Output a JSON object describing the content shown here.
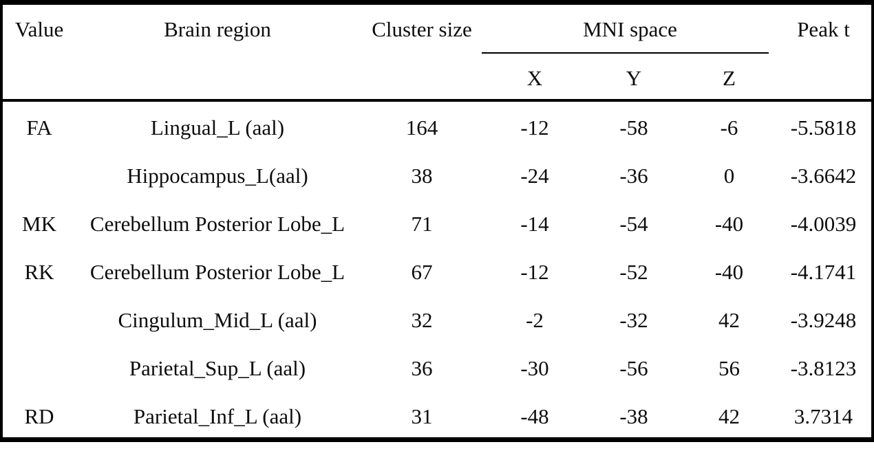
{
  "table": {
    "header": {
      "value": "Value",
      "brain_region": "Brain region",
      "cluster_size": "Cluster size",
      "mni_space": "MNI space",
      "peak_t": "Peak t",
      "mni_sub": {
        "x": "X",
        "y": "Y",
        "z": "Z"
      }
    },
    "rows": [
      {
        "value": "FA",
        "brain_region": "Lingual_L (aal)",
        "cluster_size": "164",
        "x": "-12",
        "y": "-58",
        "z": "-6",
        "peak_t": "-5.5818"
      },
      {
        "value": "",
        "brain_region": "Hippocampus_L(aal)",
        "cluster_size": "38",
        "x": "-24",
        "y": "-36",
        "z": "0",
        "peak_t": "-3.6642"
      },
      {
        "value": "MK",
        "brain_region": "Cerebellum Posterior Lobe_L",
        "cluster_size": "71",
        "x": "-14",
        "y": "-54",
        "z": "-40",
        "peak_t": "-4.0039"
      },
      {
        "value": "RK",
        "brain_region": "Cerebellum Posterior Lobe_L",
        "cluster_size": "67",
        "x": "-12",
        "y": "-52",
        "z": "-40",
        "peak_t": "-4.1741"
      },
      {
        "value": "",
        "brain_region": "Cingulum_Mid_L (aal)",
        "cluster_size": "32",
        "x": "-2",
        "y": "-32",
        "z": "42",
        "peak_t": "-3.9248"
      },
      {
        "value": "",
        "brain_region": "Parietal_Sup_L (aal)",
        "cluster_size": "36",
        "x": "-30",
        "y": "-56",
        "z": "56",
        "peak_t": "-3.8123"
      },
      {
        "value": "RD",
        "brain_region": "Parietal_Inf_L (aal)",
        "cluster_size": "31",
        "x": "-48",
        "y": "-38",
        "z": "42",
        "peak_t": "3.7314"
      }
    ]
  },
  "colors": {
    "border": "#000000",
    "text": "#0d0d0d",
    "background": "#ffffff"
  }
}
